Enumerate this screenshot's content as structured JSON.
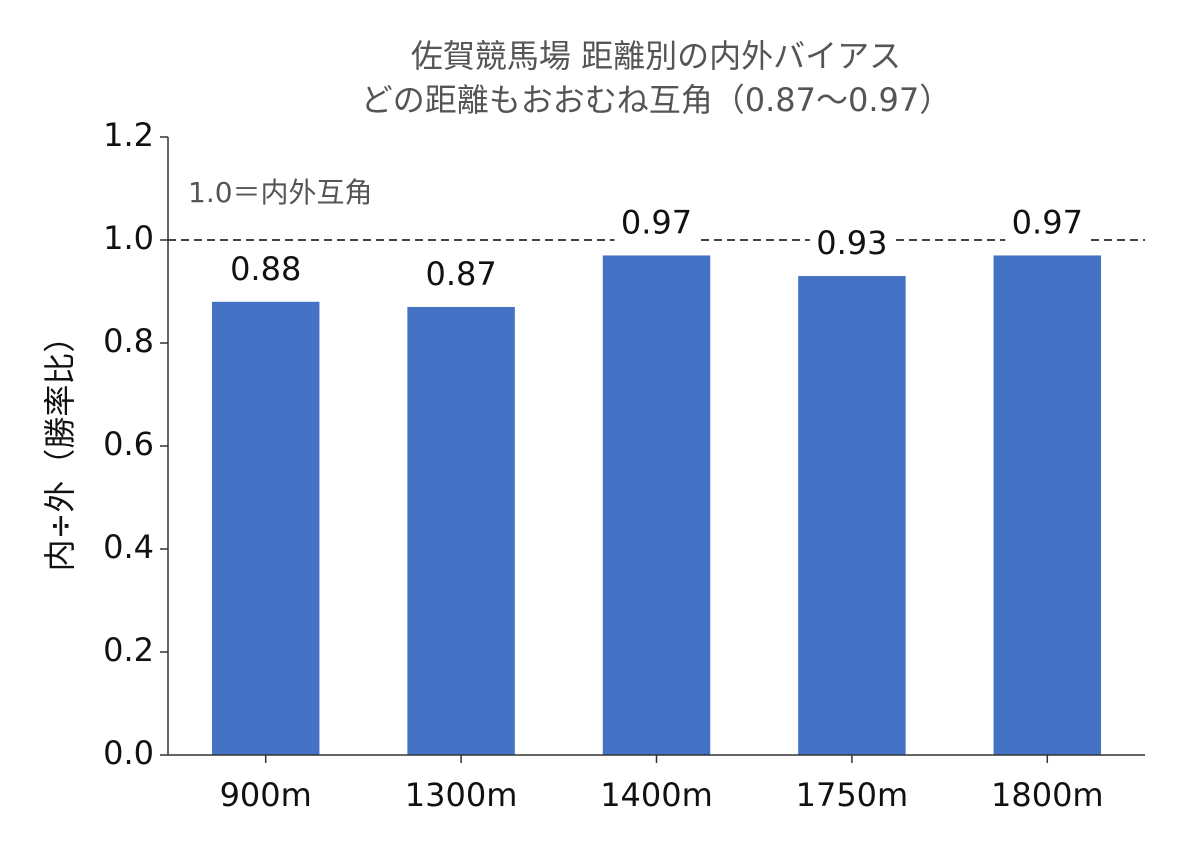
{
  "chart_data": {
    "type": "bar",
    "title": "佐賀競馬場 距離別の内外バイアス",
    "subtitle": "どの距離もおおむね互角（0.87〜0.97）",
    "y_label": "内÷外（勝率比）",
    "categories": [
      "900m",
      "1300m",
      "1400m",
      "1750m",
      "1800m"
    ],
    "values": [
      0.88,
      0.87,
      0.97,
      0.93,
      0.97
    ],
    "color": "#4472c4",
    "ylim": [
      0,
      1.2
    ],
    "yticks": [
      {
        "value": 0,
        "label": "0.0"
      },
      0.2,
      0.4,
      0.6,
      0.8,
      {
        "value": 1,
        "label": "1.0"
      },
      1.2
    ],
    "reference_line": {
      "value": 1,
      "label": "1.0＝内外互角"
    },
    "grid": false
  }
}
